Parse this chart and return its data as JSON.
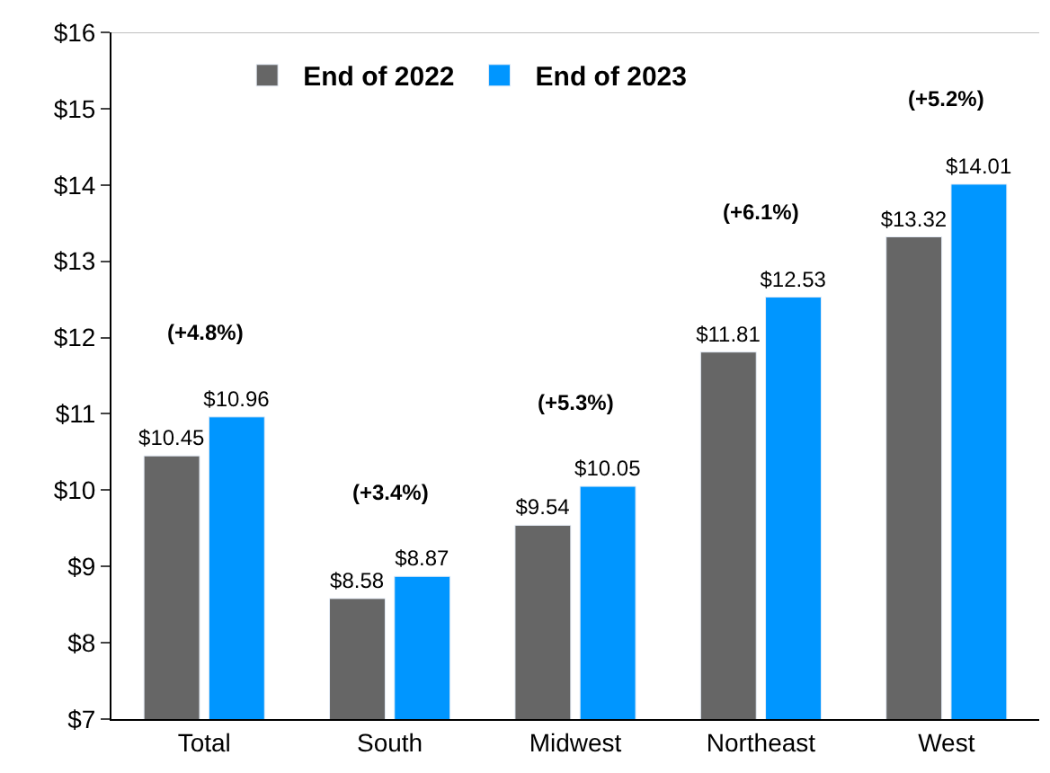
{
  "chart_data": {
    "type": "bar",
    "categories": [
      "Total",
      "South",
      "Midwest",
      "Northeast",
      "West"
    ],
    "series": [
      {
        "name": "End of 2022",
        "color": "#666666",
        "values": [
          10.45,
          8.58,
          9.54,
          11.81,
          13.32
        ],
        "value_labels": [
          "$10.45",
          "$8.58",
          "$9.54",
          "$11.81",
          "$13.32"
        ]
      },
      {
        "name": "End of 2023",
        "color": "#0096ff",
        "values": [
          10.96,
          8.87,
          10.05,
          12.53,
          14.01
        ],
        "value_labels": [
          "$10.96",
          "$8.87",
          "$10.05",
          "$12.53",
          "$14.01"
        ]
      }
    ],
    "ylim": [
      7,
      16
    ],
    "yticks": [
      {
        "value": 7,
        "label": "$7"
      },
      {
        "value": 8,
        "label": "$8"
      },
      {
        "value": 9,
        "label": "$9"
      },
      {
        "value": 10,
        "label": "$10"
      },
      {
        "value": 11,
        "label": "$11"
      },
      {
        "value": 12,
        "label": "$12"
      },
      {
        "value": 13,
        "label": "$13"
      },
      {
        "value": 14,
        "label": "$14"
      },
      {
        "value": 15,
        "label": "$15"
      },
      {
        "value": 16,
        "label": "$16"
      }
    ],
    "annotations": [
      "(+4.8%)",
      "(+3.4%)",
      "(+5.3%)",
      "(+6.1%)",
      "(+5.2%)"
    ],
    "legend": "top"
  }
}
